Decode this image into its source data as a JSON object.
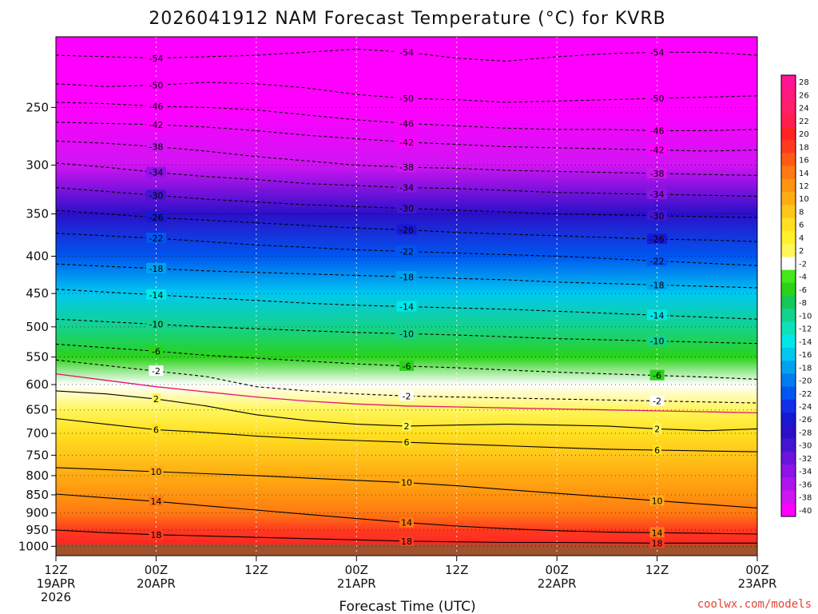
{
  "title": "2026041912 NAM Forecast Temperature (°C) for KVRB",
  "xlabel": "Forecast Time (UTC)",
  "credit": "coolwx.com/models",
  "chart_data": {
    "type": "heatmap",
    "title": "2026041912 NAM Forecast Temperature (°C) for KVRB",
    "xlabel": "Forecast Time (UTC)",
    "ylabel": "",
    "x_ticks": [
      {
        "h": 0,
        "lines": [
          "12Z",
          "19APR",
          "2026"
        ]
      },
      {
        "h": 12,
        "lines": [
          "00Z",
          "20APR"
        ]
      },
      {
        "h": 24,
        "lines": [
          "12Z"
        ]
      },
      {
        "h": 36,
        "lines": [
          "00Z",
          "21APR"
        ]
      },
      {
        "h": 48,
        "lines": [
          "12Z"
        ]
      },
      {
        "h": 60,
        "lines": [
          "00Z",
          "22APR"
        ]
      },
      {
        "h": 72,
        "lines": [
          "12Z"
        ]
      },
      {
        "h": 84,
        "lines": [
          "00Z",
          "23APR"
        ]
      }
    ],
    "xlim": [
      0,
      84
    ],
    "y_ticks": [
      250,
      300,
      350,
      400,
      450,
      500,
      550,
      600,
      650,
      700,
      750,
      800,
      850,
      900,
      950,
      1000
    ],
    "ylim": [
      200,
      1030
    ],
    "y_scale": "log",
    "y_inverted": true,
    "grid": true,
    "colorbar_ticks": [
      28,
      26,
      24,
      22,
      20,
      18,
      16,
      14,
      12,
      10,
      8,
      6,
      4,
      2,
      -2,
      -4,
      -6,
      -8,
      -10,
      -12,
      -14,
      -16,
      -18,
      -20,
      -22,
      -24,
      -26,
      -28,
      -30,
      -32,
      -34,
      -36,
      -38,
      -40
    ],
    "colorbar_colors": [
      "#ff1493",
      "#ff1a80",
      "#ff1f6a",
      "#ff2050",
      "#ff2424",
      "#ff3a1e",
      "#ff5a14",
      "#ff7a12",
      "#ff9410",
      "#ffab12",
      "#ffc61a",
      "#ffe020",
      "#fff02a",
      "#fff65a",
      "#ffffff",
      "#44e61c",
      "#2ad21a",
      "#14c85a",
      "#14d28c",
      "#0fe0bc",
      "#00e8e8",
      "#00c8f0",
      "#00a2f0",
      "#007cf0",
      "#0056f0",
      "#1030e8",
      "#1818d2",
      "#2a10c8",
      "#4414d2",
      "#6a14dc",
      "#8c14e6",
      "#b014ee",
      "#d014f2",
      "#ff00ff"
    ],
    "temperature_profile": [
      {
        "p": 200,
        "t": -56
      },
      {
        "p": 250,
        "t": -47
      },
      {
        "p": 300,
        "t": -38
      },
      {
        "p": 350,
        "t": -29
      },
      {
        "p": 400,
        "t": -23
      },
      {
        "p": 450,
        "t": -16
      },
      {
        "p": 500,
        "t": -11
      },
      {
        "p": 550,
        "t": -6
      },
      {
        "p": 600,
        "t": -1
      },
      {
        "p": 650,
        "t": 2
      },
      {
        "p": 700,
        "t": 5
      },
      {
        "p": 750,
        "t": 7
      },
      {
        "p": 800,
        "t": 9
      },
      {
        "p": 850,
        "t": 12
      },
      {
        "p": 900,
        "t": 14
      },
      {
        "p": 950,
        "t": 17
      },
      {
        "p": 1000,
        "t": 20
      }
    ],
    "contours": [
      {
        "level": -54,
        "style": "dashed",
        "y": [
          212,
          213,
          214,
          213,
          212,
          210,
          208,
          210,
          214,
          216,
          213,
          211,
          210,
          210,
          212
        ]
      },
      {
        "level": -50,
        "style": "dashed",
        "y": [
          232,
          234,
          233,
          231,
          232,
          235,
          240,
          243,
          244,
          246,
          245,
          244,
          243,
          242,
          241
        ]
      },
      {
        "level": -46,
        "style": "dashed",
        "y": [
          246,
          247,
          249,
          250,
          252,
          256,
          260,
          263,
          265,
          267,
          268,
          268,
          269,
          269,
          268
        ]
      },
      {
        "level": -42,
        "style": "dashed",
        "y": [
          262,
          263,
          264,
          266,
          269,
          273,
          276,
          279,
          281,
          283,
          284,
          285,
          286,
          287,
          286
        ]
      },
      {
        "level": -38,
        "style": "dashed",
        "y": [
          278,
          280,
          283,
          287,
          292,
          296,
          300,
          302,
          303,
          305,
          306,
          307,
          308,
          309,
          310
        ]
      },
      {
        "level": -34,
        "style": "dashed",
        "y": [
          298,
          302,
          307,
          311,
          314,
          318,
          320,
          322,
          323,
          325,
          327,
          328,
          329,
          330,
          331
        ]
      },
      {
        "level": -30,
        "style": "dashed",
        "y": [
          322,
          326,
          330,
          334,
          337,
          340,
          342,
          344,
          346,
          348,
          350,
          351,
          352,
          353,
          354
        ]
      },
      {
        "level": -26,
        "style": "dashed",
        "y": [
          346,
          350,
          354,
          357,
          360,
          363,
          366,
          368,
          371,
          373,
          375,
          377,
          379,
          380,
          382
        ]
      },
      {
        "level": -22,
        "style": "dashed",
        "y": [
          372,
          375,
          378,
          382,
          386,
          389,
          392,
          394,
          396,
          398,
          400,
          403,
          406,
          409,
          412
        ]
      },
      {
        "level": -18,
        "style": "dashed",
        "y": [
          410,
          413,
          416,
          419,
          421,
          423,
          425,
          427,
          429,
          431,
          434,
          436,
          438,
          440,
          442
        ]
      },
      {
        "level": -14,
        "style": "dashed",
        "y": [
          444,
          448,
          452,
          456,
          460,
          464,
          467,
          469,
          471,
          473,
          476,
          479,
          482,
          485,
          488
        ]
      },
      {
        "level": -10,
        "style": "dashed",
        "y": [
          488,
          492,
          496,
          500,
          503,
          506,
          509,
          511,
          513,
          516,
          519,
          521,
          523,
          525,
          527
        ]
      },
      {
        "level": -6,
        "style": "dashed",
        "y": [
          528,
          534,
          540,
          547,
          552,
          557,
          562,
          566,
          569,
          573,
          577,
          580,
          583,
          586,
          590
        ]
      },
      {
        "level": -2,
        "style": "dashed",
        "y": [
          555,
          565,
          575,
          585,
          604,
          612,
          618,
          622,
          624,
          626,
          628,
          630,
          632,
          634,
          636
        ]
      },
      {
        "level": 2,
        "style": "solid",
        "y": [
          612,
          618,
          628,
          642,
          660,
          672,
          680,
          684,
          682,
          680,
          682,
          684,
          690,
          694,
          690
        ]
      },
      {
        "level": 6,
        "style": "solid",
        "y": [
          668,
          680,
          692,
          698,
          706,
          712,
          716,
          720,
          724,
          728,
          732,
          736,
          738,
          740,
          742
        ]
      },
      {
        "level": 10,
        "style": "solid",
        "y": [
          780,
          785,
          790,
          795,
          800,
          806,
          812,
          818,
          826,
          836,
          846,
          856,
          866,
          876,
          886
        ]
      },
      {
        "level": 14,
        "style": "solid",
        "y": [
          848,
          858,
          868,
          880,
          892,
          904,
          916,
          928,
          938,
          946,
          952,
          956,
          958,
          960,
          962
        ]
      },
      {
        "level": 18,
        "style": "solid",
        "y": [
          950,
          958,
          964,
          968,
          972,
          976,
          980,
          984,
          986,
          988,
          988,
          989,
          990,
          990,
          990
        ]
      }
    ],
    "freezing_line": {
      "level": 0,
      "color": "#e0147a",
      "y": [
        580,
        592,
        604,
        614,
        624,
        632,
        638,
        642,
        644,
        646,
        648,
        650,
        652,
        654,
        656
      ]
    }
  }
}
